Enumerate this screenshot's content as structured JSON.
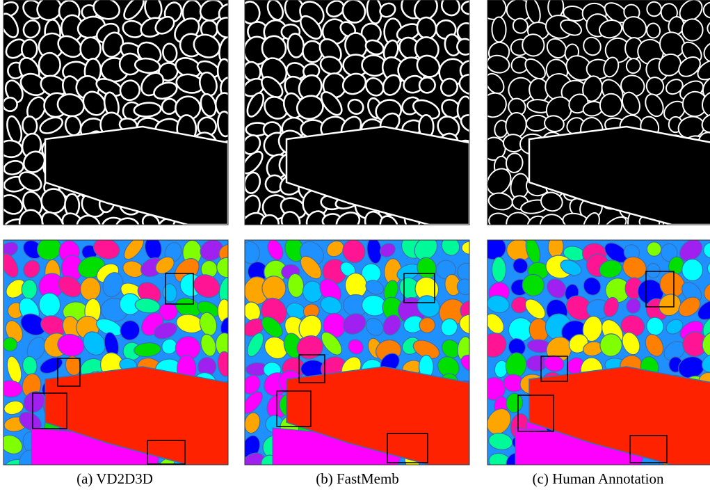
{
  "captions": [
    "(a) VD2D3D",
    "(b) FastMemb",
    "(c) Human Annotation"
  ]
}
